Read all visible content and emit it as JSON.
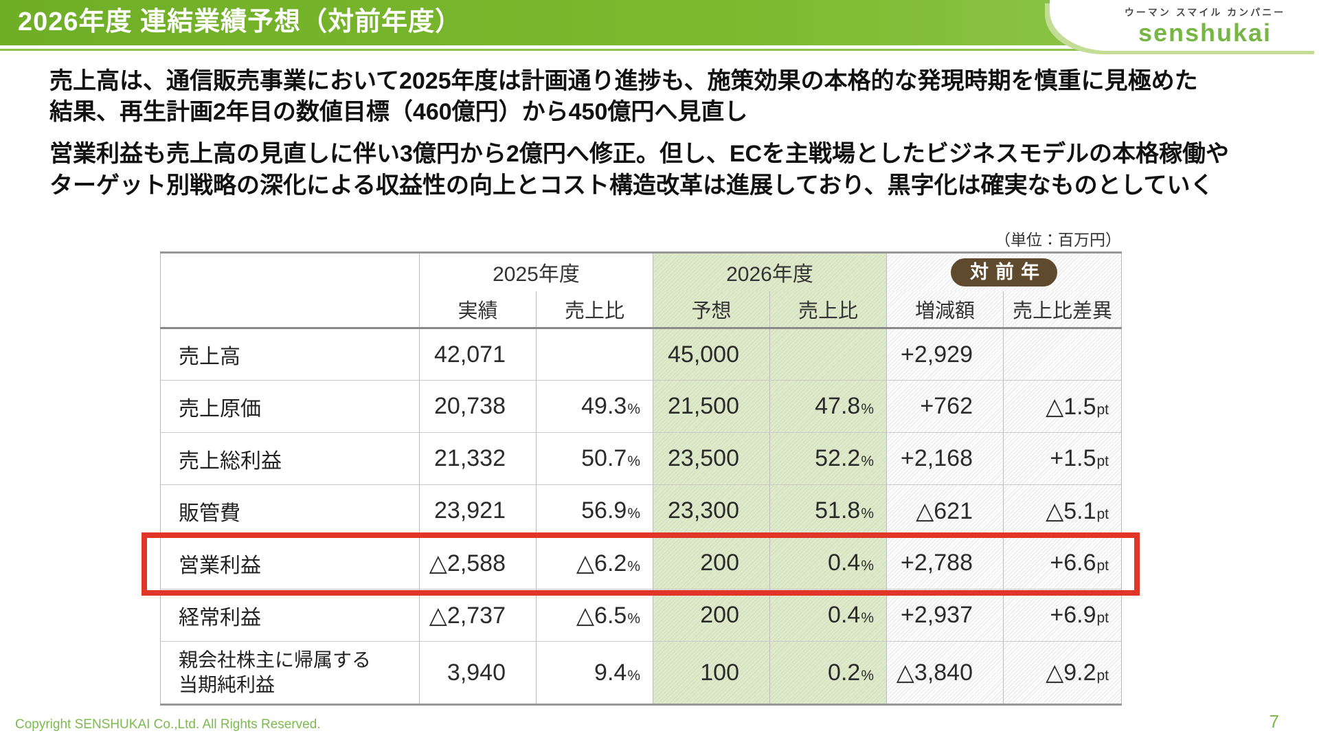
{
  "header": {
    "title": "2026年度 連結業績予想（対前年度）",
    "logo": {
      "tagline": "ウーマン スマイル カンパニー",
      "name": "senshukai"
    }
  },
  "summary": {
    "paragraph1": {
      "line1": "売上高は、通信販売事業において2025年度は計画通り進捗も、施策効果の本格的な発現時期を慎重に見極めた",
      "line2": "結果、再生計画2年目の数値目標（460億円）から450億円へ見直し"
    },
    "paragraph2": {
      "line1": "営業利益も売上高の見直しに伴い3億円から2億円へ修正。但し、ECを主戦場としたビジネスモデルの本格稼働や",
      "line2": "ターゲット別戦略の深化による収益性の向上とコスト構造改革は進展しており、黒字化は確実なものとしていく"
    }
  },
  "table": {
    "unit_note": "（単位：百万円）",
    "column_groups": [
      {
        "label": "2025年度"
      },
      {
        "label": "2026年度"
      },
      {
        "label": "対前年"
      }
    ],
    "sub_headers": [
      "実績",
      "売上比",
      "予想",
      "売上比",
      "増減額",
      "売上比差異"
    ],
    "rows": [
      {
        "label_lines": [
          "売上高"
        ],
        "highlight": false,
        "cells": [
          {
            "v": "42,071"
          },
          {
            "v": ""
          },
          {
            "v": "45,000"
          },
          {
            "v": ""
          },
          {
            "v": "+2,929"
          },
          {
            "v": ""
          }
        ]
      },
      {
        "label_lines": [
          "売上原価"
        ],
        "highlight": false,
        "cells": [
          {
            "v": "20,738"
          },
          {
            "v": "49.3",
            "suffix": "%"
          },
          {
            "v": "21,500"
          },
          {
            "v": "47.8",
            "suffix": "%"
          },
          {
            "v": "+762"
          },
          {
            "v": "△1.5",
            "suffix": "pt"
          }
        ]
      },
      {
        "label_lines": [
          "売上総利益"
        ],
        "highlight": false,
        "cells": [
          {
            "v": "21,332"
          },
          {
            "v": "50.7",
            "suffix": "%"
          },
          {
            "v": "23,500"
          },
          {
            "v": "52.2",
            "suffix": "%"
          },
          {
            "v": "+2,168"
          },
          {
            "v": "+1.5",
            "suffix": "pt"
          }
        ]
      },
      {
        "label_lines": [
          "販管費"
        ],
        "highlight": false,
        "cells": [
          {
            "v": "23,921"
          },
          {
            "v": "56.9",
            "suffix": "%"
          },
          {
            "v": "23,300"
          },
          {
            "v": "51.8",
            "suffix": "%"
          },
          {
            "v": "△621"
          },
          {
            "v": "△5.1",
            "suffix": "pt"
          }
        ]
      },
      {
        "label_lines": [
          "営業利益"
        ],
        "highlight": true,
        "cells": [
          {
            "v": "△2,588"
          },
          {
            "v": "△6.2",
            "suffix": "%"
          },
          {
            "v": "200"
          },
          {
            "v": "0.4",
            "suffix": "%"
          },
          {
            "v": "+2,788"
          },
          {
            "v": "+6.6",
            "suffix": "pt"
          }
        ]
      },
      {
        "label_lines": [
          "経常利益"
        ],
        "highlight": false,
        "cells": [
          {
            "v": "△2,737"
          },
          {
            "v": "△6.5",
            "suffix": "%"
          },
          {
            "v": "200"
          },
          {
            "v": "0.4",
            "suffix": "%"
          },
          {
            "v": "+2,937"
          },
          {
            "v": "+6.9",
            "suffix": "pt"
          }
        ]
      },
      {
        "label_lines": [
          "親会社株主に帰属する",
          "当期純利益"
        ],
        "highlight": false,
        "cells": [
          {
            "v": "3,940"
          },
          {
            "v": "9.4",
            "suffix": "%"
          },
          {
            "v": "100"
          },
          {
            "v": "0.2",
            "suffix": "%"
          },
          {
            "v": "△3,840"
          },
          {
            "v": "△9.2",
            "suffix": "pt"
          }
        ]
      }
    ]
  },
  "footer": {
    "copyright": "Copyright SENSHUKAI Co.,Ltd. All Rights Reserved.",
    "page_number": "7"
  },
  "colors": {
    "header_green": "#7cb92f",
    "logo_green": "#77b544",
    "forecast_column_green": "#d9e7c2",
    "badge_brown": "#5f4a2e",
    "highlight_red": "#e2352a",
    "footer_green": "#7cb94e"
  }
}
